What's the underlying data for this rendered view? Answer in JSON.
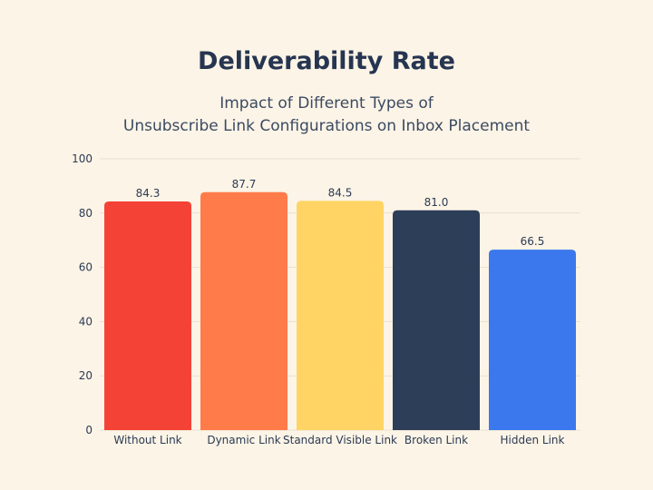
{
  "chart_data": {
    "type": "bar",
    "title": "Deliverability Rate",
    "subtitle": [
      "Impact of Different Types of",
      "Unsubscribe Link Configurations on Inbox Placement"
    ],
    "categories": [
      "Without Link",
      "Dynamic Link",
      "Standard Visible Link",
      "Broken Link",
      "Hidden Link"
    ],
    "values": [
      84.3,
      87.7,
      84.5,
      81.0,
      66.5
    ],
    "value_labels": [
      "84.3",
      "87.7",
      "84.5",
      "81.0",
      "66.5"
    ],
    "colors": [
      "#f44336",
      "#ff7b4a",
      "#ffd464",
      "#2d3e58",
      "#3b78ee"
    ],
    "ylim": [
      0,
      100
    ],
    "yticks": [
      "0",
      "20",
      "40",
      "60",
      "80",
      "100"
    ],
    "xlabel": "",
    "ylabel": "",
    "grid": true,
    "legend": "none"
  }
}
